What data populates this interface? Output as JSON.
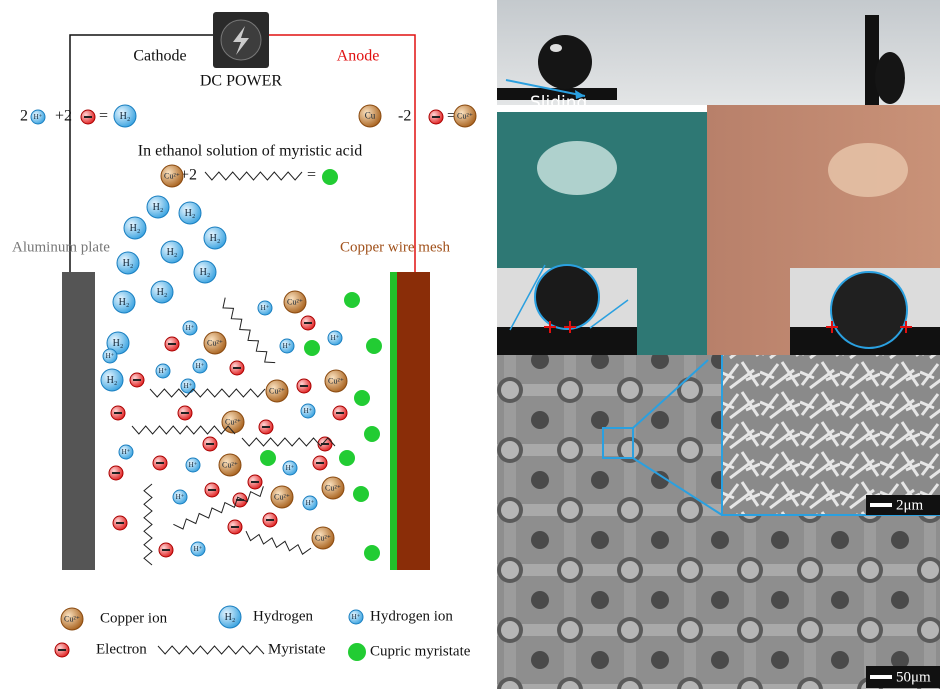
{
  "power": {
    "cathode": "Cathode",
    "anode": "Anode",
    "label": "DC POWER"
  },
  "equations": {
    "cathode": {
      "lead": "2",
      "mid": "+2",
      "eq": "="
    },
    "anode": {
      "mid": "-2",
      "eq": "="
    },
    "solution": "In ethanol solution of myristic acid",
    "reaction": {
      "mid": "+2",
      "eq": "="
    }
  },
  "electrodes": {
    "left": "Aluminum plate",
    "right": "Copper wire mesh"
  },
  "species": {
    "copper_ion": {
      "symbol": "Cu²⁺",
      "name": "Copper ion"
    },
    "copper": {
      "symbol": "Cu"
    },
    "hydrogen": {
      "symbol": "H₂",
      "name": "Hydrogen"
    },
    "hydrogen_ion": {
      "symbol": "H⁺",
      "name": "Hydrogen ion"
    },
    "electron": {
      "name": "Electron"
    },
    "myristate": {
      "name": "Myristate"
    },
    "cupric_myristate": {
      "name": "Cupric myristate"
    }
  },
  "photo": {
    "sliding": "Sliding",
    "scale_inset": "2μm",
    "scale_main": "50μm"
  }
}
